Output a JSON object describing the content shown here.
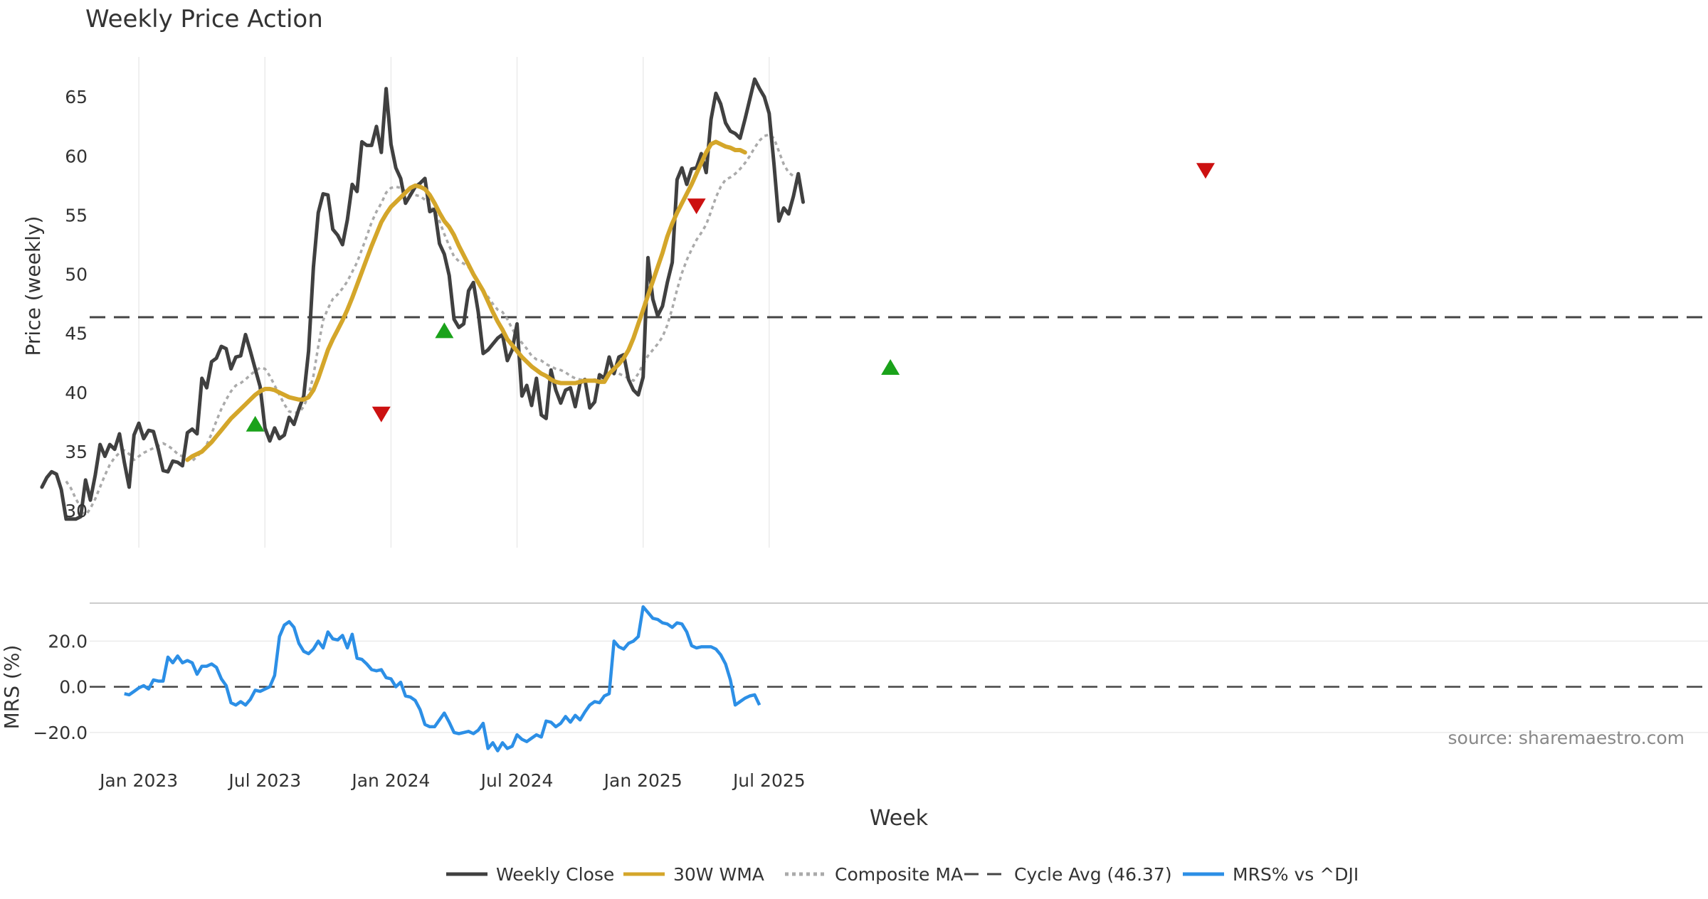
{
  "chart_data": {
    "type": "line",
    "title": "Weekly Price Action",
    "source": "source: sharemaestro.com",
    "xlabel": "Week",
    "x_ticks": [
      "Jan 2023",
      "Jul 2023",
      "Jan 2024",
      "Jul 2024",
      "Jan 2025",
      "Jul 2025"
    ],
    "price_panel": {
      "ylabel": "Price (weekly)",
      "ylim": [
        27,
        68.5
      ],
      "yticks": [
        30,
        35,
        40,
        45,
        50,
        55,
        60,
        65
      ],
      "grid": "vertical",
      "cycle_avg": 46.37,
      "series": {
        "weekly_close": {
          "name": "Weekly Close",
          "color": "#404040",
          "x_start": -10,
          "x_step": 1,
          "values": [
            32,
            32.8,
            33.3,
            33.1,
            31.8,
            29.3,
            29.3,
            29.3,
            29.5,
            32.6,
            30.9,
            33,
            35.6,
            34.6,
            35.6,
            35.2,
            36.5,
            34.1,
            32,
            36.4,
            37.4,
            36.1,
            36.8,
            36.7,
            35.2,
            33.4,
            33.3,
            34.2,
            34.1,
            33.8,
            36.6,
            36.9,
            36.5,
            41.2,
            40.4,
            42.6,
            42.9,
            43.9,
            43.7,
            42,
            43,
            43.1,
            44.9,
            43.5,
            42,
            40.5,
            37,
            35.9,
            37,
            36.1,
            36.4,
            37.9,
            37.3,
            38.6,
            39.7,
            43.5,
            50.6,
            55.2,
            56.8,
            56.7,
            53.8,
            53.3,
            52.5,
            54.6,
            57.6,
            57,
            61.2,
            60.9,
            60.9,
            62.5,
            60.3,
            65.7,
            61,
            59,
            58.1,
            56,
            56.7,
            57.4,
            57.7,
            58.1,
            55.3,
            55.5,
            52.6,
            51.7,
            49.9,
            46.2,
            45.5,
            45.8,
            48.6,
            49.3,
            46.8,
            43.3,
            43.6,
            44.1,
            44.6,
            44.9,
            42.7,
            43.6,
            45.8,
            39.7,
            40.6,
            38.9,
            41.2,
            38.1,
            37.8,
            41.9,
            40.2,
            39.1,
            40.2,
            40.4,
            38.8,
            40.8,
            41.1,
            38.7,
            39.2,
            41.5,
            41.2,
            43,
            41.6,
            43,
            43.2,
            41.1,
            40.2,
            39.8,
            41.3,
            51.4,
            47.9,
            46.5,
            47.3,
            49.3,
            51,
            58,
            59,
            57.6,
            58.9,
            59,
            60.2,
            58.6,
            63.1,
            65.3,
            64.4,
            62.8,
            62.1,
            61.9,
            61.5,
            63.1,
            64.8,
            66.5,
            65.7,
            65,
            63.6,
            59.3,
            54.5,
            55.6,
            55.1,
            56.6,
            58.5,
            56.1
          ]
        },
        "wma_30": {
          "name": "30W WMA",
          "color": "#d4a62a",
          "x_start": 20,
          "x_step": 1,
          "values": [
            34.3,
            34.6,
            34.8,
            35,
            35.4,
            35.8,
            36.3,
            36.8,
            37.3,
            37.8,
            38.2,
            38.6,
            39,
            39.4,
            39.8,
            40.1,
            40.3,
            40.3,
            40.2,
            40,
            39.8,
            39.6,
            39.5,
            39.4,
            39.4,
            39.6,
            40.2,
            41.2,
            42.4,
            43.6,
            44.5,
            45.3,
            46.1,
            47,
            48,
            49.1,
            50.2,
            51.3,
            52.4,
            53.4,
            54.4,
            55.1,
            55.7,
            56.1,
            56.5,
            56.9,
            57.3,
            57.5,
            57.4,
            57.2,
            56.7,
            56,
            55.2,
            54.5,
            54,
            53.3,
            52.4,
            51.6,
            50.8,
            50,
            49.3,
            48.6,
            47.7,
            46.8,
            46,
            45.3,
            44.5,
            44,
            43.5,
            43,
            42.6,
            42.2,
            41.9,
            41.6,
            41.4,
            41.1,
            40.9,
            40.8,
            40.8,
            40.8,
            40.8,
            40.9,
            41,
            41,
            41,
            40.9,
            40.9,
            41.6,
            42,
            42.4,
            42.9,
            43.6,
            44.6,
            45.8,
            47,
            48.2,
            49.4,
            50.6,
            51.8,
            53.2,
            54.3,
            55.2,
            56,
            56.8,
            57.6,
            58.5,
            59.4,
            60.3,
            61,
            61.2,
            61,
            60.8,
            60.7,
            60.5,
            60.5,
            60.3
          ]
        },
        "composite_ma": {
          "name": "Composite MA",
          "color": "#aaaaaa",
          "x_start": -5,
          "x_step": 1,
          "values": [
            32.5,
            31.9,
            31,
            30.3,
            29.6,
            30.2,
            31,
            32,
            33,
            33.9,
            34.5,
            34.9,
            35.1,
            34.8,
            34.3,
            34.6,
            34.9,
            35.1,
            35.3,
            35.5,
            35.7,
            35.5,
            35.2,
            34.8,
            34.6,
            34.4,
            34.2,
            34.6,
            35,
            35.6,
            36.5,
            37.6,
            38.6,
            39.4,
            40.1,
            40.6,
            40.8,
            41.1,
            41.5,
            41.8,
            42.1,
            42,
            41.4,
            40.6,
            39.8,
            39,
            38.4,
            38.3,
            38.3,
            38.8,
            39.8,
            41.4,
            43.9,
            46.1,
            47.1,
            47.9,
            48.3,
            48.8,
            49.4,
            50.2,
            51,
            52.1,
            53.2,
            54.4,
            55.3,
            56,
            56.9,
            57.3,
            57.4,
            57.3,
            57,
            56.7,
            56.7,
            56.6,
            56.3,
            55.9,
            55.3,
            54.5,
            53.4,
            52.4,
            51.5,
            51.1,
            50.9,
            50.6,
            50,
            49.2,
            48.6,
            48.1,
            47.5,
            47,
            46.8,
            46.2,
            45.4,
            44.7,
            44.2,
            43.7,
            43.1,
            42.8,
            42.7,
            42.4,
            42.2,
            42,
            41.9,
            41.7,
            41.4,
            41.2,
            41.1,
            41,
            41,
            41.1,
            41.1,
            41.3,
            41.6,
            41.7,
            41.6,
            41.4,
            41.2,
            41,
            41.6,
            42.4,
            43.1,
            43.6,
            44.1,
            44.7,
            45.7,
            47.1,
            48.7,
            50.1,
            51.2,
            52.1,
            52.9,
            53.5,
            54.2,
            55.3,
            56.5,
            57.4,
            58,
            58.2,
            58.5,
            58.9,
            59.4,
            60,
            60.7,
            61.3,
            61.7,
            61.8,
            61.5,
            60.4,
            59.3,
            58.6,
            58.3,
            58.3
          ]
        }
      },
      "signals": {
        "buy": {
          "color": "#1aa21a",
          "points": [
            {
              "x": 34,
              "y": 37.3
            },
            {
              "x": 73,
              "y": 45.2
            },
            {
              "x": 165,
              "y": 42.1
            }
          ]
        },
        "sell": {
          "color": "#cc1111",
          "points": [
            {
              "x": 60,
              "y": 38.2
            },
            {
              "x": 125,
              "y": 55.8
            },
            {
              "x": 230,
              "y": 58.8
            }
          ]
        }
      }
    },
    "mrs_panel": {
      "ylabel": "MRS (%)",
      "ylim": [
        -30,
        36
      ],
      "yticks": [
        -20,
        0,
        20
      ],
      "ytick_labels": [
        "−20.0",
        "0.0",
        "20.0"
      ],
      "series": {
        "name": "MRS% vs ^DJI",
        "color": "#2c8fe6",
        "x_start": 7,
        "x_step": 1,
        "values": [
          -3,
          -3.5,
          -2,
          -0.5,
          0.5,
          -1,
          3,
          2.5,
          2.5,
          13,
          10.5,
          13.5,
          10.5,
          11.5,
          10.5,
          5.5,
          9,
          9,
          10,
          8.5,
          3.5,
          0.5,
          -7,
          -8,
          -6.5,
          -8,
          -5.5,
          -1.5,
          -2,
          -1,
          0,
          5,
          22,
          27,
          28.5,
          26,
          19,
          15.5,
          14.5,
          16.5,
          20,
          17,
          24,
          21,
          20.5,
          22.5,
          17,
          23,
          12.5,
          12,
          10,
          7.5,
          7,
          7.5,
          4,
          3.5,
          0,
          2,
          -4,
          -4.5,
          -6,
          -10,
          -16.5,
          -17.5,
          -17.5,
          -14.5,
          -11.5,
          -15.5,
          -20,
          -20.5,
          -20,
          -19.5,
          -20.5,
          -19,
          -16,
          -27,
          -24.5,
          -28,
          -24.5,
          -27,
          -26,
          -21,
          -23,
          -24,
          -22.5,
          -21,
          -22,
          -15,
          -15.5,
          -17.5,
          -16,
          -13,
          -15.5,
          -12.5,
          -14.5,
          -11,
          -8,
          -6.5,
          -7,
          -4,
          -3,
          20,
          17.5,
          16.5,
          19,
          20,
          22,
          35,
          32.5,
          30,
          29.5,
          28,
          27.5,
          26,
          28,
          27.5,
          24,
          18,
          17,
          17.5,
          17.5,
          17.5,
          16.5,
          14,
          10,
          3,
          -8,
          -6.5,
          -5,
          -4,
          -3.5,
          -8
        ]
      }
    },
    "legend": [
      {
        "label": "Weekly Close",
        "style": "solid",
        "color": "#404040"
      },
      {
        "label": "30W WMA",
        "style": "solid",
        "color": "#d4a62a"
      },
      {
        "label": "Composite MA",
        "style": "dotted",
        "color": "#aaaaaa"
      },
      {
        "label": "Cycle Avg (46.37)",
        "style": "dashed",
        "color": "#444444"
      },
      {
        "label": "MRS% vs ^DJI",
        "style": "solid",
        "color": "#2c8fe6"
      }
    ]
  }
}
